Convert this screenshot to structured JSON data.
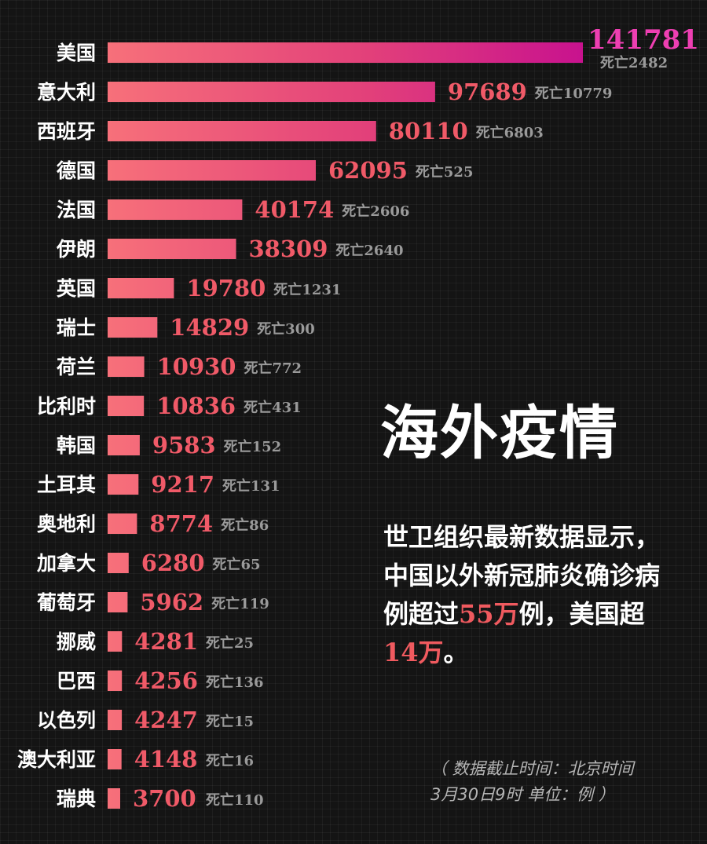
{
  "headline": "海外疫情",
  "summary": {
    "part1": "世卫组织最新数据显示，中国以外新冠肺炎确诊病例超过",
    "global_highlight": "55万",
    "part2": "例，美国超",
    "us_highlight": "14万",
    "part3": "。"
  },
  "note": {
    "line1": "（ 数据截止时间：北京时间",
    "line2": "3月30日9时  单位：例 ）"
  },
  "colors": {
    "background": "#141414",
    "bar_start": "#f7707a",
    "bar_end": "#c8128e",
    "value_text": "#f05a68",
    "top_value_text": "#ee3fb2",
    "death_text": "#9a9a9a",
    "highlight": "#f05a5f"
  },
  "chart_data": {
    "type": "bar",
    "orientation": "horizontal",
    "title": "",
    "xlabel": "",
    "ylabel": "",
    "grid": false,
    "legend": "none",
    "xlim": [
      0,
      141781
    ],
    "categories": [
      "美国",
      "意大利",
      "西班牙",
      "德国",
      "法国",
      "伊朗",
      "英国",
      "瑞士",
      "荷兰",
      "比利时",
      "韩国",
      "土耳其",
      "奥地利",
      "加拿大",
      "葡萄牙",
      "挪威",
      "巴西",
      "以色列",
      "澳大利亚",
      "瑞典"
    ],
    "values": [
      141781,
      97689,
      80110,
      62095,
      40174,
      38309,
      19780,
      14829,
      10930,
      10836,
      9583,
      9217,
      8774,
      6280,
      5962,
      4281,
      4256,
      4247,
      4148,
      3700
    ],
    "value_labels": [
      "141781",
      "97689",
      "80110",
      "62095",
      "40174",
      "38309",
      "19780",
      "14829",
      "10930",
      "10836",
      "9583",
      "9217",
      "8774",
      "6280",
      "5962",
      "4281",
      "4256",
      "4247",
      "4148",
      "3700"
    ],
    "deaths": [
      2482,
      10779,
      6803,
      525,
      2606,
      2640,
      1231,
      300,
      772,
      431,
      152,
      131,
      86,
      65,
      119,
      25,
      136,
      15,
      16,
      110
    ],
    "death_labels": [
      "死亡2482",
      "死亡10779",
      "死亡6803",
      "死亡525",
      "死亡2606",
      "死亡2640",
      "死亡1231",
      "死亡300",
      "死亡772",
      "死亡431",
      "死亡152",
      "死亡131",
      "死亡86",
      "死亡65",
      "死亡119",
      "死亡25",
      "死亡136",
      "死亡15",
      "死亡16",
      "死亡110"
    ]
  }
}
